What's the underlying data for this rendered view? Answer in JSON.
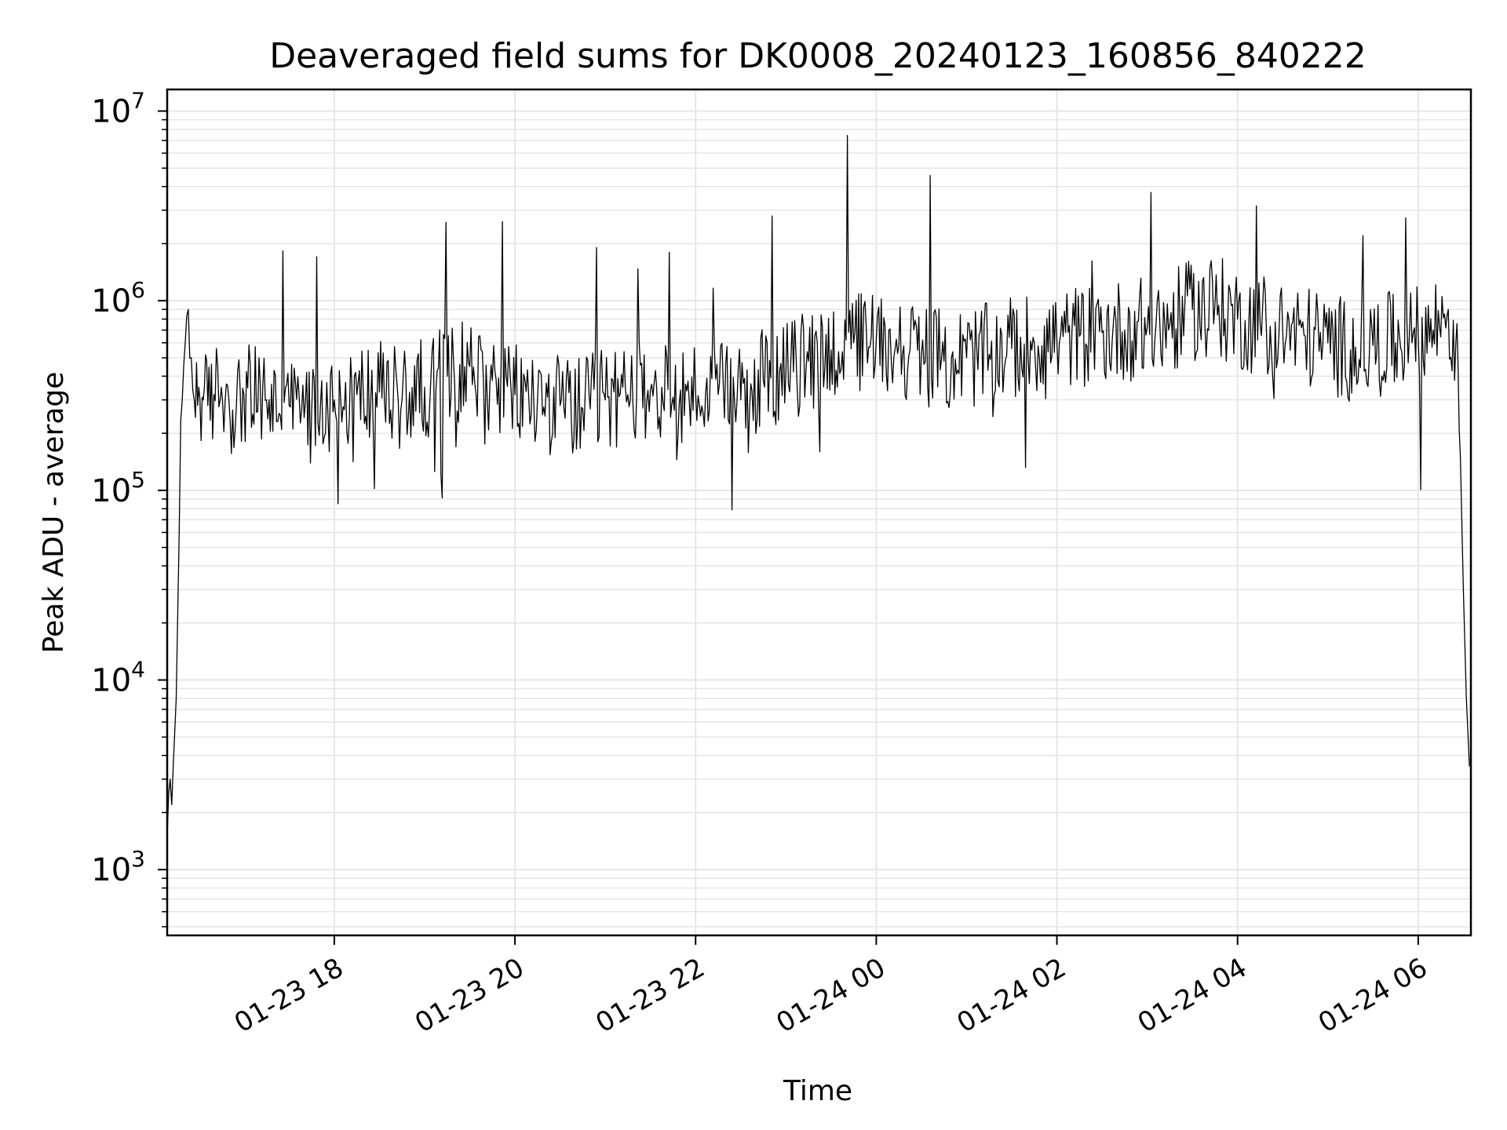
{
  "chart_data": {
    "type": "line",
    "title": "Deaveraged field sums for DK0008_20240123_160856_840222",
    "xlabel": "Time",
    "ylabel": "Peak ADU - average",
    "yscale": "log",
    "ylim": [
      450,
      13000000
    ],
    "xlim": [
      "2024-01-23 16:09",
      "2024-01-24 06:35"
    ],
    "x_ticks": [
      {
        "value": "2024-01-23 18:00",
        "label": "01-23 18"
      },
      {
        "value": "2024-01-23 20:00",
        "label": "01-23 20"
      },
      {
        "value": "2024-01-23 22:00",
        "label": "01-23 22"
      },
      {
        "value": "2024-01-24 00:00",
        "label": "01-24 00"
      },
      {
        "value": "2024-01-24 02:00",
        "label": "01-24 02"
      },
      {
        "value": "2024-01-24 04:00",
        "label": "01-24 04"
      },
      {
        "value": "2024-01-24 06:00",
        "label": "01-24 06"
      }
    ],
    "y_ticks": [
      {
        "value": 1000,
        "base": "10",
        "exp": "3"
      },
      {
        "value": 10000,
        "base": "10",
        "exp": "4"
      },
      {
        "value": 100000,
        "base": "10",
        "exp": "5"
      },
      {
        "value": 1000000,
        "base": "10",
        "exp": "6"
      },
      {
        "value": 10000000,
        "base": "10",
        "exp": "7"
      }
    ],
    "grid": true,
    "line_color": "#000000",
    "series": [
      {
        "x": [
          "2024-01-23 16:09",
          "2024-01-23 16:10",
          "2024-01-23 16:11",
          "2024-01-23 16:12",
          "2024-01-23 16:13",
          "2024-01-23 16:15",
          "2024-01-23 16:17",
          "2024-01-23 16:19",
          "2024-01-23 16:21",
          "2024-01-23 16:23",
          "2024-01-23 16:25",
          "2024-01-23 16:27",
          "2024-01-23 16:30",
          "2024-01-23 16:33",
          "2024-01-23 16:36",
          "2024-01-23 16:40",
          "2024-01-23 16:45",
          "2024-01-23 16:50",
          "2024-01-23 16:55",
          "2024-01-23 17:00",
          "2024-01-23 17:15",
          "2024-01-23 17:30",
          "2024-01-23 17:45",
          "2024-01-23 18:00",
          "2024-01-23 18:15",
          "2024-01-23 18:30",
          "2024-01-23 18:45",
          "2024-01-23 19:00",
          "2024-01-23 19:15",
          "2024-01-23 19:30",
          "2024-01-23 19:45",
          "2024-01-23 20:00",
          "2024-01-23 20:15",
          "2024-01-23 20:30",
          "2024-01-23 20:45",
          "2024-01-23 21:00",
          "2024-01-23 21:15",
          "2024-01-23 21:30",
          "2024-01-23 21:45",
          "2024-01-23 22:00",
          "2024-01-23 22:15",
          "2024-01-23 22:30",
          "2024-01-23 22:45",
          "2024-01-23 23:00",
          "2024-01-23 23:15",
          "2024-01-23 23:30",
          "2024-01-23 23:45",
          "2024-01-24 00:00",
          "2024-01-24 00:15",
          "2024-01-24 00:30",
          "2024-01-24 00:45",
          "2024-01-24 01:00",
          "2024-01-24 01:15",
          "2024-01-24 01:30",
          "2024-01-24 01:45",
          "2024-01-24 02:00",
          "2024-01-24 02:15",
          "2024-01-24 02:30",
          "2024-01-24 02:45",
          "2024-01-24 03:00",
          "2024-01-24 03:15",
          "2024-01-24 03:30",
          "2024-01-24 03:45",
          "2024-01-24 04:00",
          "2024-01-24 04:15",
          "2024-01-24 04:30",
          "2024-01-24 04:45",
          "2024-01-24 05:00",
          "2024-01-24 05:15",
          "2024-01-24 05:30",
          "2024-01-24 05:45",
          "2024-01-24 06:00",
          "2024-01-24 06:10",
          "2024-01-24 06:20",
          "2024-01-24 06:25",
          "2024-01-24 06:28",
          "2024-01-24 06:30",
          "2024-01-24 06:32",
          "2024-01-24 06:34"
        ],
        "y": [
          1500,
          2500,
          3000,
          2200,
          3500,
          8000,
          60000,
          300000,
          600000,
          900000,
          500000,
          300000,
          350000,
          300000,
          280000,
          320000,
          350000,
          300000,
          280000,
          320000,
          300000,
          280000,
          260000,
          300000,
          320000,
          330000,
          300000,
          350000,
          400000,
          450000,
          380000,
          320000,
          300000,
          280000,
          270000,
          300000,
          320000,
          340000,
          310000,
          330000,
          320000,
          300000,
          380000,
          420000,
          480000,
          550000,
          600000,
          620000,
          580000,
          520000,
          480000,
          500000,
          520000,
          560000,
          600000,
          620000,
          650000,
          680000,
          700000,
          720000,
          750000,
          900000,
          950000,
          800000,
          750000,
          700000,
          650000,
          600000,
          550000,
          580000,
          600000,
          650000,
          700000,
          900000,
          600000,
          150000,
          30000,
          8000,
          3500
        ]
      }
    ]
  }
}
